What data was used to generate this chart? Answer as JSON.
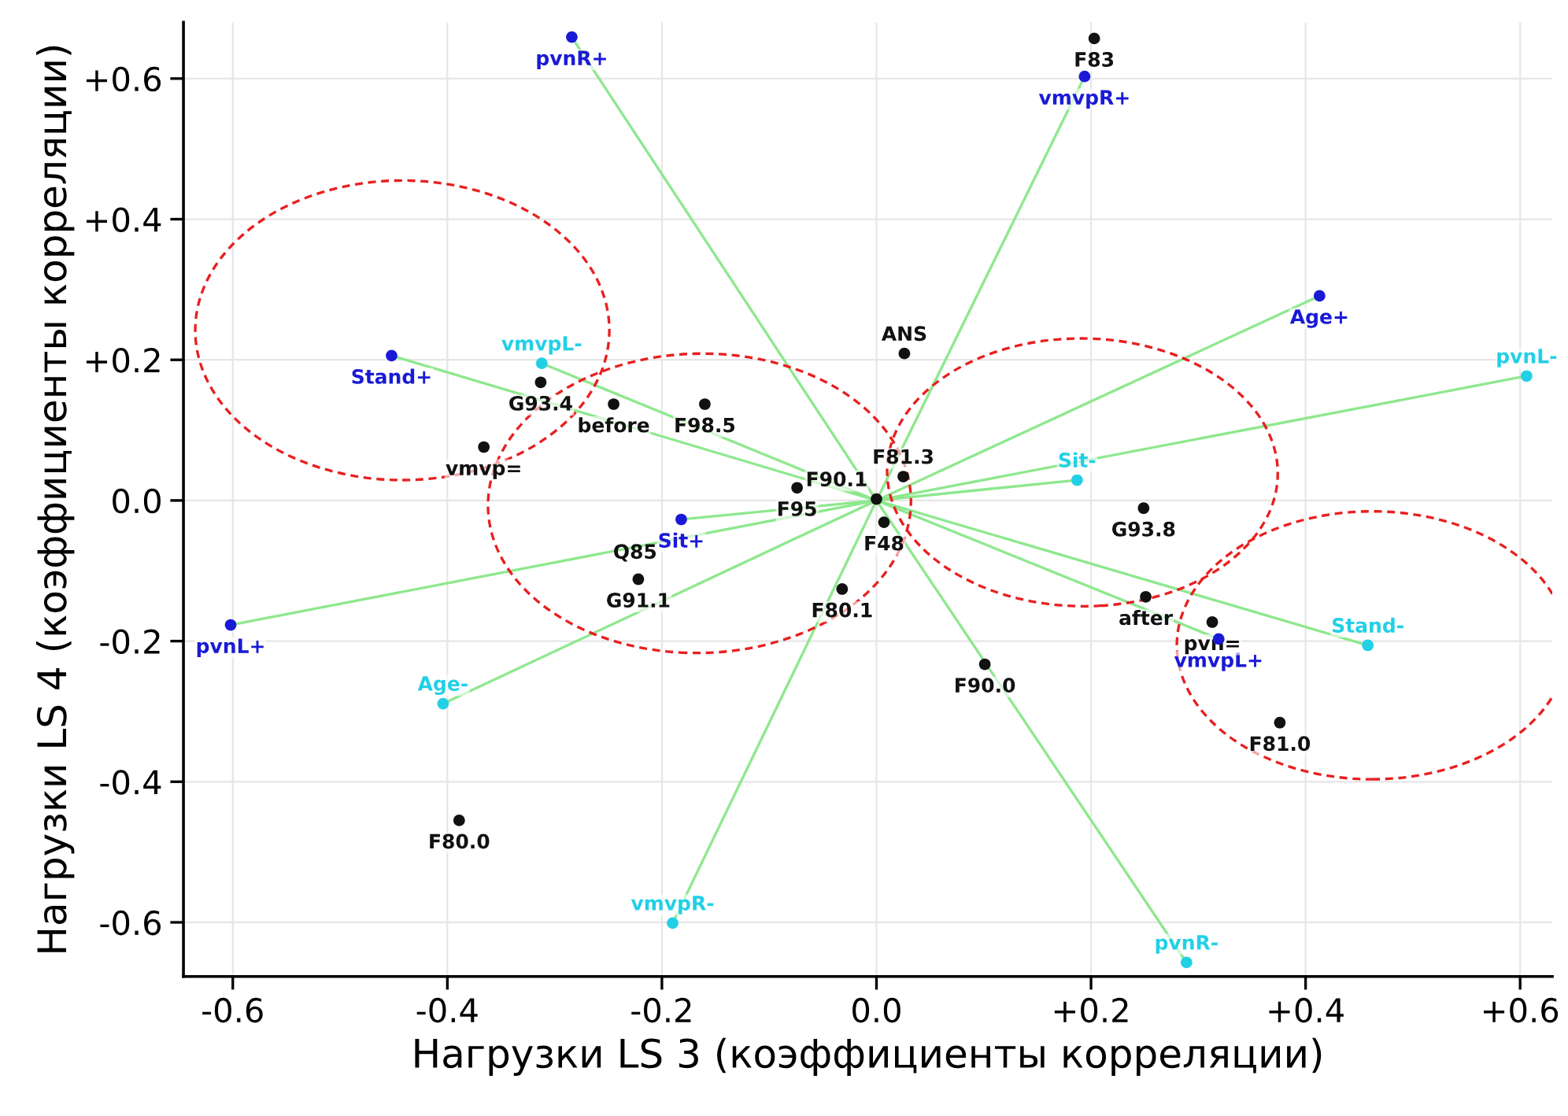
{
  "chart_data": {
    "type": "scatter",
    "xlabel": "Нагрузки LS 3 (коэффициенты корреляции)",
    "ylabel": "Нагрузки LS 4 (коэффициенты корреляции)",
    "xlim": [
      -0.646,
      0.63
    ],
    "ylim": [
      -0.677,
      0.68
    ],
    "xticks": [
      {
        "value": -0.6,
        "label": "-0.6"
      },
      {
        "value": -0.4,
        "label": "-0.4"
      },
      {
        "value": -0.2,
        "label": "-0.2"
      },
      {
        "value": 0,
        "label": "0.0"
      },
      {
        "value": 0.2,
        "label": "+0.2"
      },
      {
        "value": 0.4,
        "label": "+0.4"
      },
      {
        "value": 0.6,
        "label": "+0.6"
      }
    ],
    "yticks": [
      {
        "value": -0.6,
        "label": "-0.6"
      },
      {
        "value": -0.4,
        "label": "-0.4"
      },
      {
        "value": -0.2,
        "label": "-0.2"
      },
      {
        "value": 0,
        "label": "0.0"
      },
      {
        "value": 0.2,
        "label": "+0.2"
      },
      {
        "value": 0.4,
        "label": "+0.4"
      },
      {
        "value": 0.6,
        "label": "+0.6"
      }
    ],
    "grid": true,
    "legend": false,
    "series": [
      {
        "type": "line",
        "color": "#8ee88e",
        "x": [
          0,
          -0.284
        ],
        "values": [
          0,
          0.659
        ]
      },
      {
        "type": "line",
        "color": "#8ee88e",
        "x": [
          0,
          0.194
        ],
        "values": [
          0,
          0.603
        ]
      },
      {
        "type": "line",
        "color": "#8ee88e",
        "x": [
          0,
          0.413
        ],
        "values": [
          0,
          0.291
        ]
      },
      {
        "type": "line",
        "color": "#8ee88e",
        "x": [
          0,
          -0.452
        ],
        "values": [
          0,
          0.206
        ]
      },
      {
        "type": "line",
        "color": "#8ee88e",
        "x": [
          0,
          -0.182
        ],
        "values": [
          0,
          -0.027
        ]
      },
      {
        "type": "line",
        "color": "#8ee88e",
        "x": [
          0,
          -0.602
        ],
        "values": [
          0,
          -0.177
        ]
      },
      {
        "type": "line",
        "color": "#8ee88e",
        "x": [
          0,
          0.319
        ],
        "values": [
          0,
          -0.197
        ]
      },
      {
        "type": "line",
        "color": "#8ee88e",
        "x": [
          0,
          -0.312
        ],
        "values": [
          0,
          0.195
        ]
      },
      {
        "type": "line",
        "color": "#8ee88e",
        "x": [
          0,
          0.606
        ],
        "values": [
          0,
          0.177
        ]
      },
      {
        "type": "line",
        "color": "#8ee88e",
        "x": [
          0,
          0.187
        ],
        "values": [
          0,
          0.029
        ]
      },
      {
        "type": "line",
        "color": "#8ee88e",
        "x": [
          0,
          0.458
        ],
        "values": [
          0,
          -0.206
        ]
      },
      {
        "type": "line",
        "color": "#8ee88e",
        "x": [
          0,
          -0.404
        ],
        "values": [
          0,
          -0.289
        ]
      },
      {
        "type": "line",
        "color": "#8ee88e",
        "x": [
          0,
          -0.19
        ],
        "values": [
          0,
          -0.601
        ]
      },
      {
        "type": "line",
        "color": "#8ee88e",
        "x": [
          0,
          0.289
        ],
        "values": [
          0,
          -0.657
        ]
      },
      {
        "marker": "circle",
        "color": "#1a1ad6",
        "x": [
          -0.284,
          0.194,
          0.413,
          -0.452,
          -0.182,
          -0.602,
          0.319
        ],
        "values": [
          0.659,
          0.603,
          0.291,
          0.206,
          -0.027,
          -0.177,
          -0.197
        ],
        "value_labels": [
          "pvnR+",
          "vmvpR+",
          "Age+",
          "Stand+",
          "Sit+",
          "pvnL+",
          "vmvpL+"
        ]
      },
      {
        "marker": "circle",
        "color": "#22d0e6",
        "x": [
          -0.312,
          0.606,
          0.187,
          0.458,
          -0.404,
          -0.19,
          0.289
        ],
        "values": [
          0.195,
          0.177,
          0.029,
          -0.206,
          -0.289,
          -0.601,
          -0.657
        ],
        "value_labels": [
          "vmvpL-",
          "pvnL-",
          "Sit-",
          "Stand-",
          "Age-",
          "vmvpR-",
          "pvnR-"
        ]
      },
      {
        "marker": "circle",
        "color": "#111111",
        "x": [
          0.203,
          0.026,
          -0.313,
          -0.245,
          -0.16,
          -0.366,
          0.025,
          0.0,
          -0.074,
          0.007,
          0.249,
          -0.222,
          -0.032,
          0.313,
          0.251,
          0.101,
          0.376,
          -0.389
        ],
        "values": [
          0.657,
          0.209,
          0.168,
          0.137,
          0.137,
          0.076,
          0.034,
          0.002,
          0.018,
          -0.031,
          -0.011,
          -0.112,
          -0.126,
          -0.173,
          -0.137,
          -0.233,
          -0.316,
          -0.455
        ],
        "value_labels": [
          "F83",
          "ANS",
          "G93.4",
          "before",
          "F98.5",
          "vmvp=",
          "F81.3",
          "F90.1",
          "F95",
          "F48",
          "G93.8",
          "G91.1",
          "F80.1",
          "pvn=",
          "after",
          "F90.0",
          "F81.0",
          "F80.0"
        ]
      }
    ],
    "annotations": [
      {
        "text": "Q85",
        "x": -0.225,
        "y": -0.075
      }
    ]
  }
}
